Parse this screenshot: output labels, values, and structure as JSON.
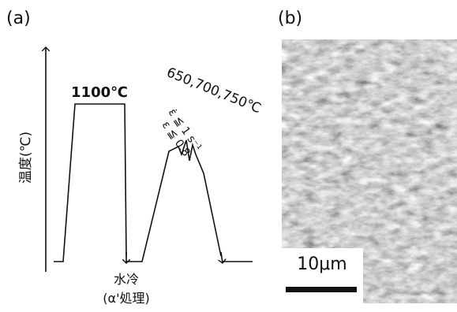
{
  "panel_a": {
    "label": "(a)",
    "y_axis_label": "温度(℃)",
    "peak_temp": "1100℃",
    "deform_temps": "650,700,750℃",
    "strain_rate": "ε̇ ≦ 1 s⁻¹",
    "strain": "ε ≦ 0.8",
    "quench": "水冷",
    "quench_note": "(α'処理)"
  },
  "panel_b": {
    "label": "(b)",
    "scale_bar": "10μm"
  }
}
